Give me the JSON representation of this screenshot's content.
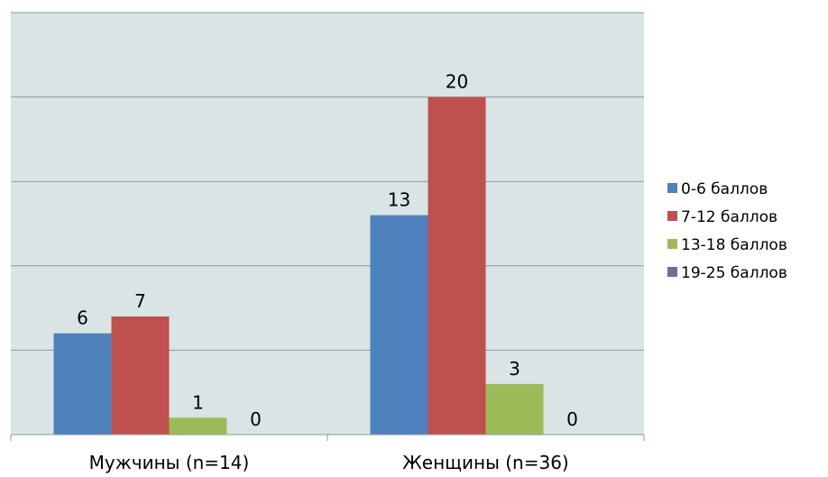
{
  "chart_data": {
    "type": "bar",
    "categories": [
      "Мужчины (n=14)",
      "Женщины (n=36)"
    ],
    "series": [
      {
        "name": "0-6 баллов",
        "values": [
          6,
          13
        ],
        "color": "#4F81BD"
      },
      {
        "name": "7-12 баллов",
        "values": [
          7,
          20
        ],
        "color": "#C0504D"
      },
      {
        "name": "13-18 баллов",
        "values": [
          1,
          3
        ],
        "color": "#9BBB59"
      },
      {
        "name": "19-25 баллов",
        "values": [
          0,
          0
        ],
        "color": "#8064A2"
      }
    ],
    "ylim": [
      0,
      25
    ],
    "grid": true,
    "legend": "right",
    "plot_background": "#D9E4E4",
    "gridline_color": "#8A9B9B"
  }
}
